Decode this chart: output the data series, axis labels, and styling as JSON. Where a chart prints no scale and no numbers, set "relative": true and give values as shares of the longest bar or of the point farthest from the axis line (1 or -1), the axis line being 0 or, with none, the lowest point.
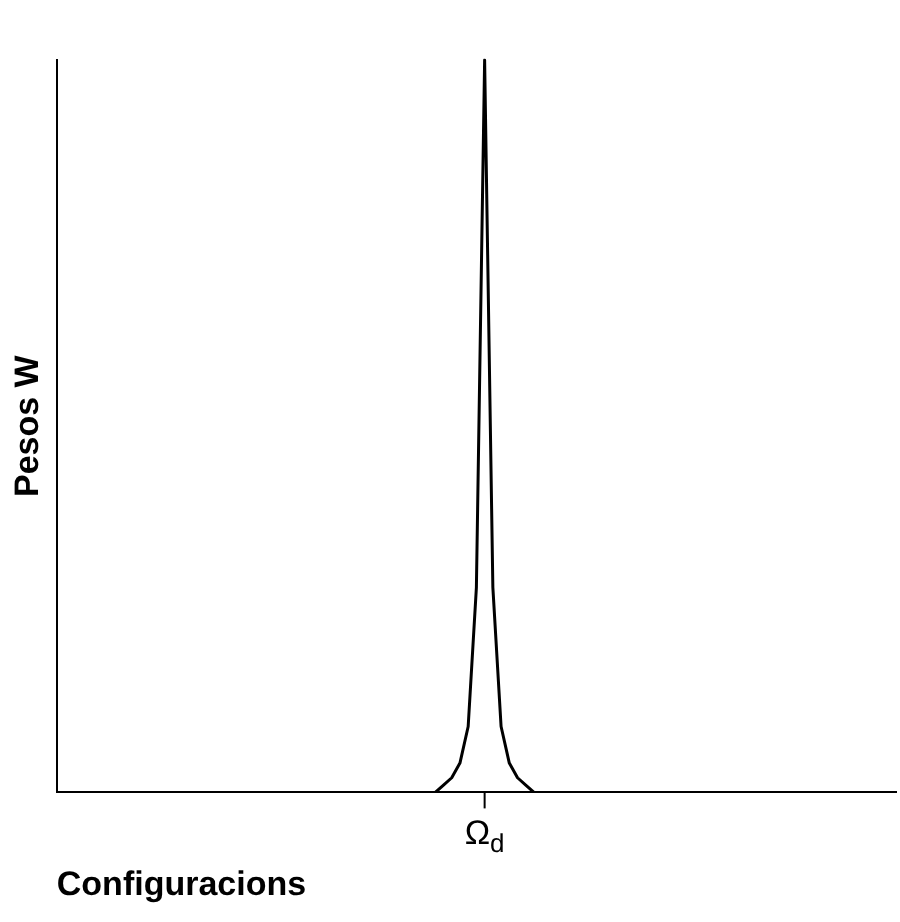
{
  "chart_data": {
    "type": "line",
    "relative": true,
    "xlabel": "Configuracions",
    "ylabel": "Pesos W",
    "categories": [
      null,
      null,
      null,
      null,
      null,
      null,
      null,
      null,
      null,
      null,
      null,
      null,
      null,
      null,
      null,
      null,
      null,
      null,
      null,
      null,
      null,
      null,
      null,
      null,
      null,
      null,
      null,
      null,
      null,
      null,
      null,
      null,
      null,
      null,
      null,
      null,
      null,
      null,
      null,
      null,
      null,
      null,
      null,
      null,
      null,
      null,
      null,
      null,
      null,
      null,
      null,
      null,
      null,
      null,
      null,
      null,
      null,
      null,
      null,
      null,
      null,
      null,
      null,
      null,
      null,
      null,
      null,
      null,
      null,
      null,
      null,
      null,
      null,
      null,
      null,
      null,
      null,
      null,
      null,
      null,
      null,
      null,
      null,
      null,
      null,
      null,
      null,
      null,
      null,
      null,
      null,
      null,
      null,
      null,
      null,
      null,
      null,
      null,
      null,
      null,
      null,
      null,
      null
    ],
    "series": [
      {
        "color": "#000000",
        "values": [
          0,
          0,
          0,
          0,
          0,
          0,
          0,
          0,
          0,
          0,
          0,
          0,
          0,
          0,
          0,
          0,
          0,
          0,
          0,
          0,
          0,
          0,
          0,
          0,
          0,
          0,
          0,
          0,
          0,
          0,
          0,
          0,
          0,
          0,
          0,
          0,
          0,
          0,
          0,
          0,
          0,
          0,
          0,
          0,
          0,
          0,
          0,
          0.01,
          0.02,
          0.04,
          0.09,
          0.28,
          1,
          0.28,
          0.09,
          0.04,
          0.02,
          0.01,
          0,
          0,
          0,
          0,
          0,
          0,
          0,
          0,
          0,
          0,
          0,
          0,
          0,
          0,
          0,
          0,
          0,
          0,
          0,
          0,
          0,
          0,
          0,
          0,
          0,
          0,
          0,
          0,
          0,
          0,
          0,
          0,
          0,
          0,
          0,
          0,
          0,
          0,
          0,
          0,
          0,
          0,
          0,
          0,
          0
        ]
      }
    ],
    "annotations": [
      "Ω$_{d}$"
    ],
    "grid": false,
    "legend": false,
    "marker": "none",
    "line_style": "solid"
  }
}
